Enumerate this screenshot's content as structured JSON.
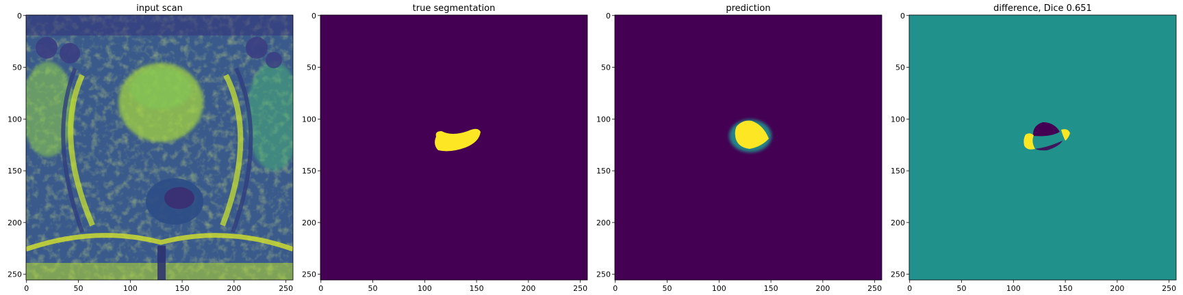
{
  "figure": {
    "panels": [
      {
        "title": "input scan",
        "kind": "mri-scan",
        "x_ticks": [
          "0",
          "50",
          "100",
          "150",
          "200",
          "250"
        ],
        "y_ticks": [
          "0",
          "50",
          "100",
          "150",
          "200",
          "250"
        ]
      },
      {
        "title": "true segmentation",
        "kind": "mask-true",
        "x_ticks": [
          "0",
          "50",
          "100",
          "150",
          "200",
          "250"
        ],
        "y_ticks": [
          "0",
          "50",
          "100",
          "150",
          "200",
          "250"
        ]
      },
      {
        "title": "prediction",
        "kind": "mask-pred",
        "x_ticks": [
          "0",
          "50",
          "100",
          "150",
          "200",
          "250"
        ],
        "y_ticks": [
          "0",
          "50",
          "100",
          "150",
          "200",
          "250"
        ]
      },
      {
        "title": "difference, Dice 0.651",
        "kind": "mask-diff",
        "x_ticks": [
          "0",
          "50",
          "100",
          "150",
          "200",
          "250"
        ],
        "y_ticks": [
          "0",
          "50",
          "100",
          "150",
          "200",
          "250"
        ]
      }
    ]
  },
  "colors": {
    "viridis_low": "#440154",
    "viridis_mid": "#21918c",
    "viridis_high": "#fde725",
    "scan_dark": "#2d3f7d",
    "scan_mid": "#2a8f89",
    "scan_bright": "#b9de2c"
  }
}
